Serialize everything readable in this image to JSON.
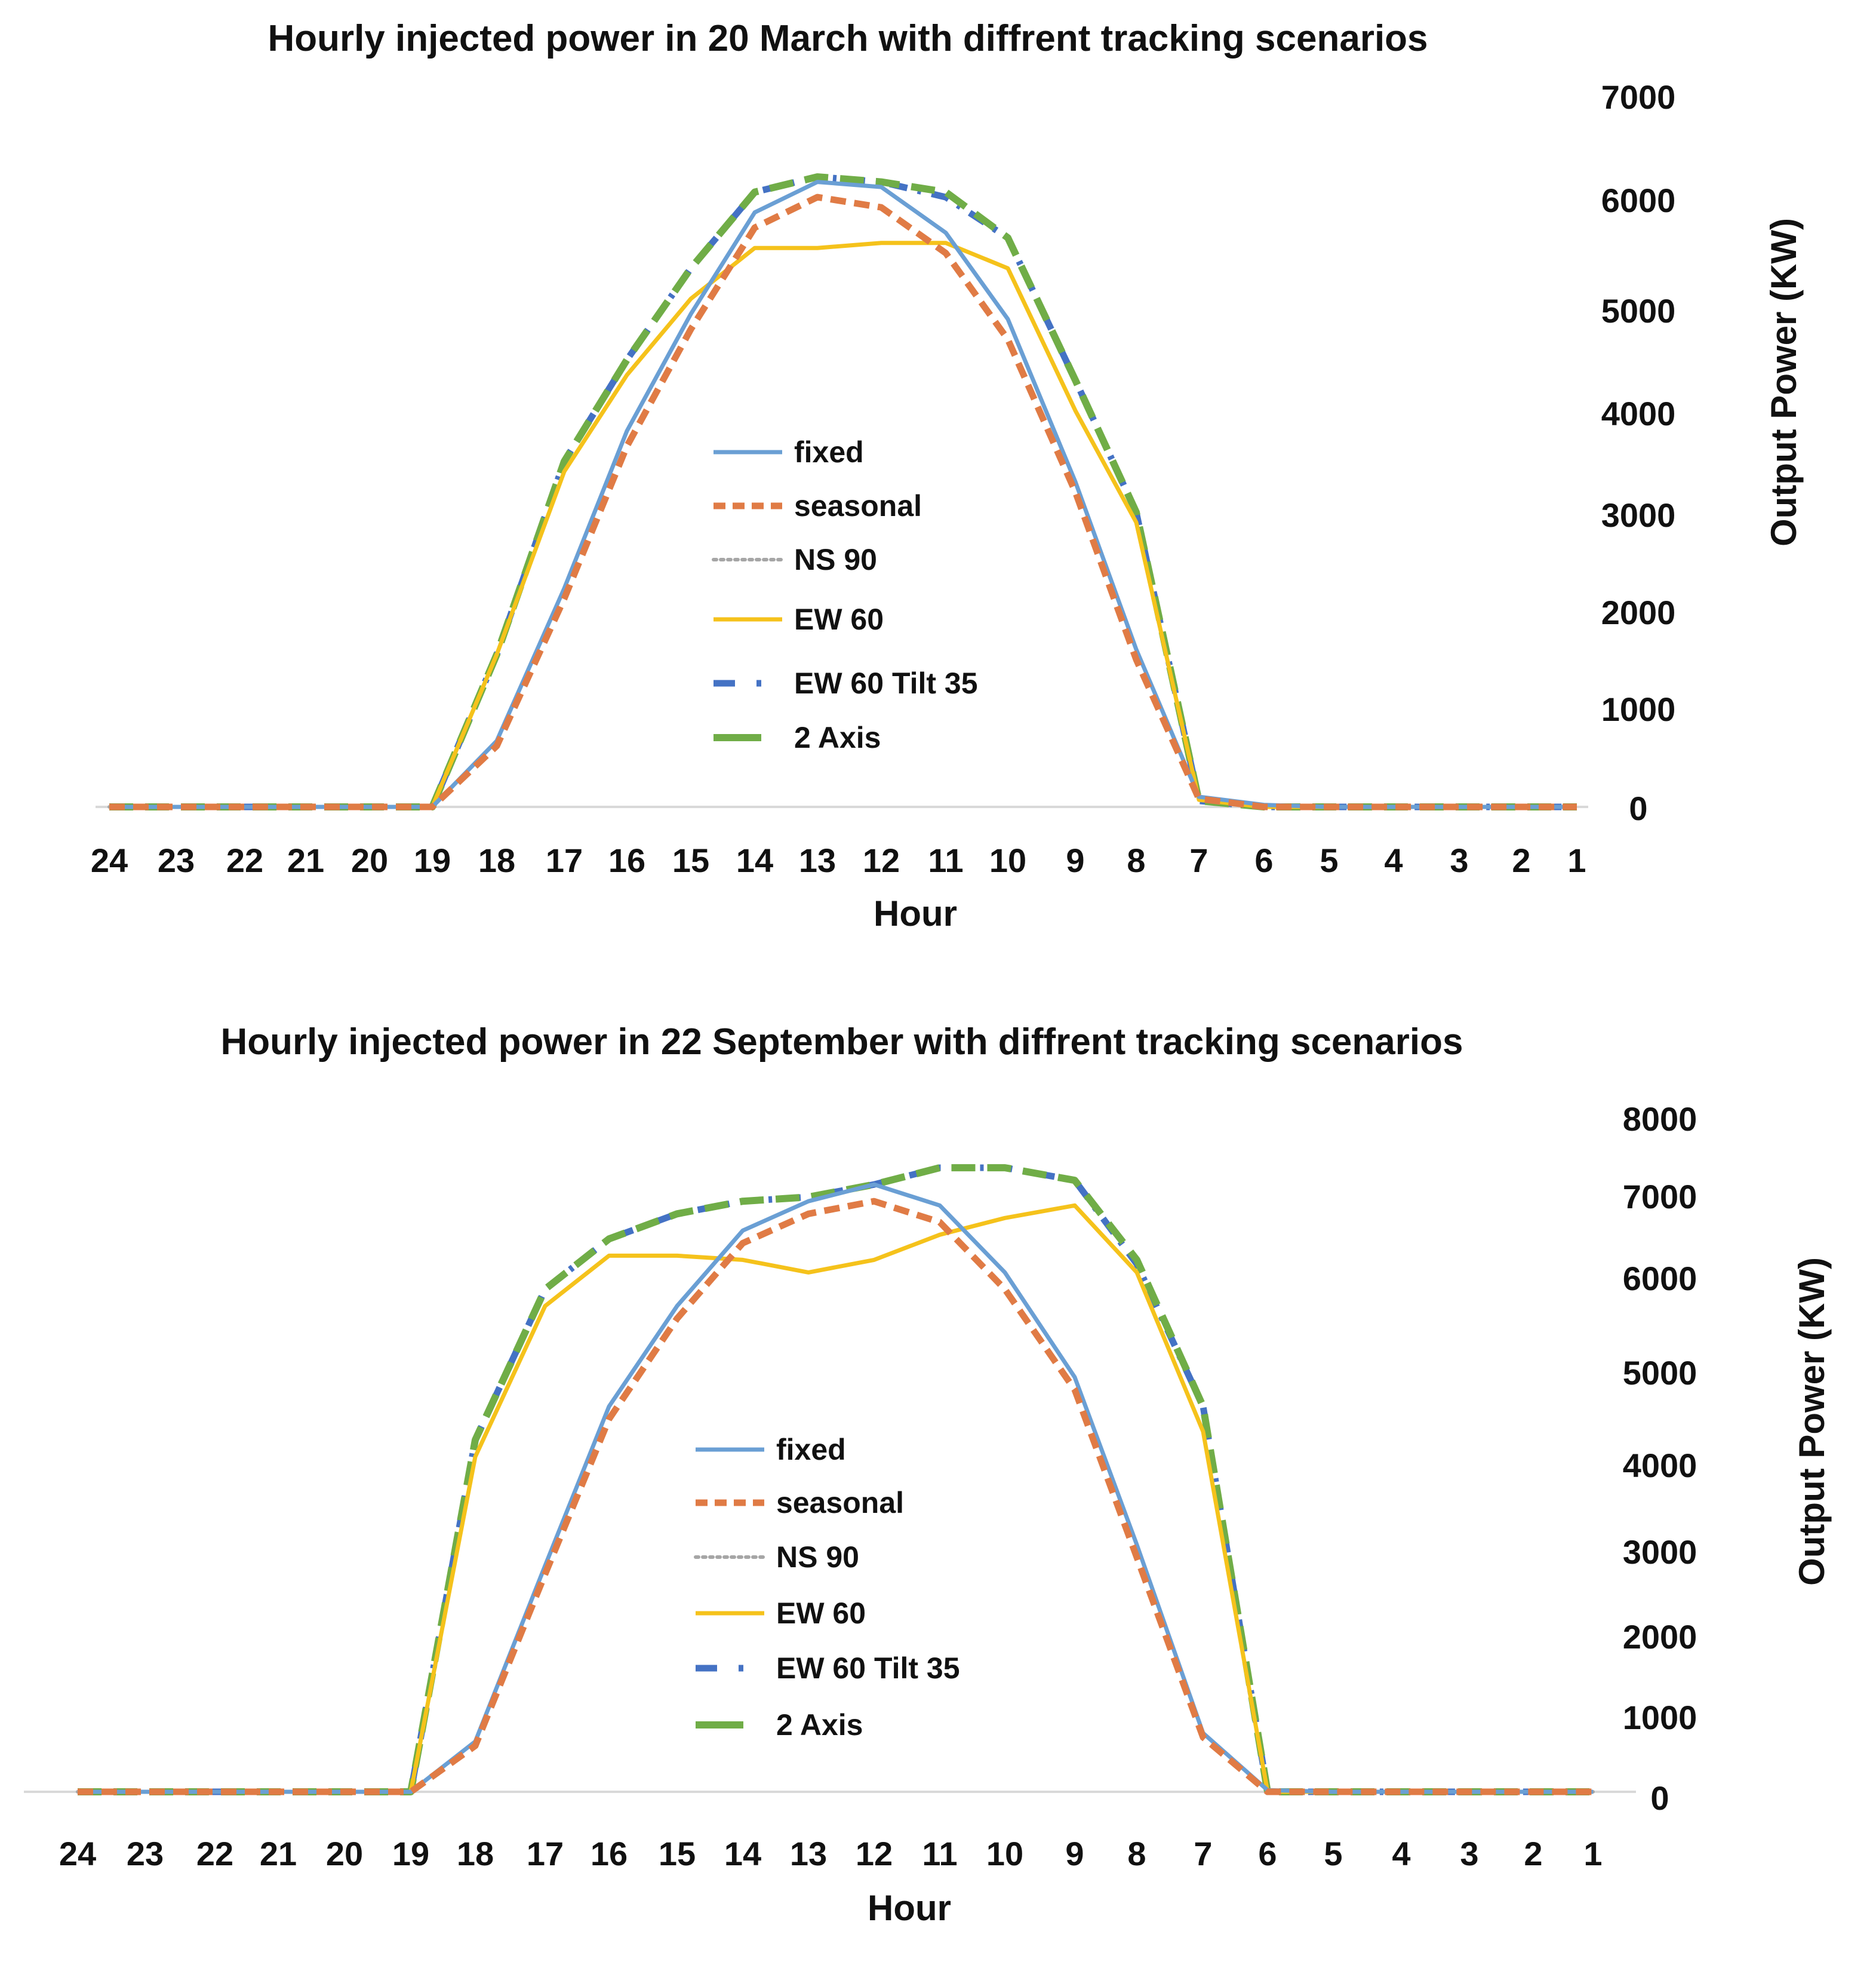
{
  "colors": {
    "fixed": "#6a9fd4",
    "seasonal": "#e07b45",
    "ns90": "#a6a6a6",
    "ew60": "#f5c21b",
    "ew60tilt35": "#4472c4",
    "axis2": "#70ad47",
    "baseline": "#d9d9d9"
  },
  "chart_data": [
    {
      "type": "line",
      "title": "Hourly injected power in 20 March with diffrent tracking scenarios",
      "xlabel": "Hour",
      "ylabel": "Output Power (KW)",
      "categories": [
        "24",
        "23",
        "22",
        "21",
        "20",
        "19",
        "18",
        "17",
        "16",
        "15",
        "14",
        "13",
        "12",
        "11",
        "10",
        "9",
        "8",
        "7",
        "6",
        "5",
        "4",
        "3",
        "2",
        "1"
      ],
      "y_ticks": [
        "0",
        "1000",
        "2000",
        "3000",
        "4000",
        "5000",
        "6000",
        "7000"
      ],
      "ylim": [
        0,
        7000
      ],
      "legend_title_keys": [
        "fixed",
        "seasonal",
        "ns90",
        "ew60",
        "ew60tilt35",
        "axis2"
      ],
      "series": [
        {
          "key": "fixed",
          "name": "fixed",
          "values": [
            0,
            0,
            0,
            0,
            0,
            0,
            650,
            2150,
            3700,
            4850,
            5850,
            6150,
            6100,
            5650,
            4800,
            3200,
            1550,
            100,
            20,
            0,
            0,
            0,
            0,
            0
          ]
        },
        {
          "key": "seasonal",
          "name": "seasonal",
          "values": [
            0,
            0,
            0,
            0,
            0,
            0,
            600,
            2050,
            3550,
            4700,
            5700,
            6000,
            5900,
            5450,
            4600,
            3100,
            1450,
            80,
            0,
            0,
            0,
            0,
            0,
            0
          ]
        },
        {
          "key": "ns90",
          "name": "NS 90",
          "values": [
            0,
            0,
            0,
            0,
            0,
            0,
            1500,
            3300,
            4250,
            5000,
            5500,
            5500,
            5550,
            5550,
            5300,
            3900,
            2800,
            70,
            0,
            0,
            0,
            0,
            0,
            0
          ]
        },
        {
          "key": "ew60",
          "name": "EW 60",
          "values": [
            0,
            0,
            0,
            0,
            0,
            0,
            1500,
            3300,
            4250,
            5000,
            5500,
            5500,
            5550,
            5550,
            5300,
            3900,
            2800,
            70,
            0,
            0,
            0,
            0,
            0,
            0
          ]
        },
        {
          "key": "ew60tilt35",
          "name": "EW 60 Tilt 35",
          "values": [
            0,
            0,
            0,
            0,
            0,
            0,
            1500,
            3400,
            4400,
            5300,
            6050,
            6200,
            6150,
            6000,
            5600,
            4200,
            2900,
            60,
            0,
            0,
            0,
            0,
            0,
            0
          ]
        },
        {
          "key": "axis2",
          "name": "2 Axis",
          "values": [
            0,
            0,
            0,
            0,
            0,
            0,
            1500,
            3400,
            4400,
            5300,
            6050,
            6200,
            6150,
            6050,
            5600,
            4200,
            2900,
            60,
            0,
            0,
            0,
            0,
            0,
            0
          ]
        }
      ]
    },
    {
      "type": "line",
      "title": "Hourly injected power in 22 September with diffrent tracking scenarios",
      "xlabel": "Hour",
      "ylabel": "Output Power (KW)",
      "categories": [
        "24",
        "23",
        "22",
        "21",
        "20",
        "19",
        "18",
        "17",
        "16",
        "15",
        "14",
        "13",
        "12",
        "11",
        "10",
        "9",
        "8",
        "7",
        "6",
        "5",
        "4",
        "3",
        "2",
        "1"
      ],
      "y_ticks": [
        "0",
        "1000",
        "2000",
        "3000",
        "4000",
        "5000",
        "6000",
        "7000",
        "8000"
      ],
      "ylim": [
        0,
        8000
      ],
      "series": [
        {
          "key": "fixed",
          "name": "fixed",
          "values": [
            0,
            0,
            0,
            0,
            0,
            0,
            600,
            2700,
            4600,
            5800,
            6700,
            7050,
            7250,
            7000,
            6200,
            4950,
            2950,
            700,
            20,
            0,
            0,
            0,
            0,
            0
          ]
        },
        {
          "key": "seasonal",
          "name": "seasonal",
          "values": [
            0,
            0,
            0,
            0,
            0,
            0,
            550,
            2600,
            4450,
            5650,
            6550,
            6900,
            7050,
            6800,
            6000,
            4800,
            2800,
            650,
            0,
            0,
            0,
            0,
            0,
            0
          ]
        },
        {
          "key": "ns90",
          "name": "NS 90",
          "values": [
            0,
            0,
            0,
            0,
            0,
            0,
            4000,
            5800,
            6400,
            6400,
            6350,
            6200,
            6350,
            6650,
            6850,
            7000,
            6200,
            4300,
            0,
            0,
            0,
            0,
            0,
            0
          ]
        },
        {
          "key": "ew60",
          "name": "EW 60",
          "values": [
            0,
            0,
            0,
            0,
            0,
            0,
            4000,
            5800,
            6400,
            6400,
            6350,
            6200,
            6350,
            6650,
            6850,
            7000,
            6200,
            4300,
            0,
            0,
            0,
            0,
            0,
            0
          ]
        },
        {
          "key": "ew60tilt35",
          "name": "EW 60 Tilt 35",
          "values": [
            0,
            0,
            0,
            0,
            0,
            0,
            4200,
            6000,
            6600,
            6900,
            7050,
            7100,
            7250,
            7450,
            7450,
            7300,
            6300,
            4600,
            0,
            0,
            0,
            0,
            0,
            0
          ]
        },
        {
          "key": "axis2",
          "name": "2 Axis",
          "values": [
            0,
            0,
            0,
            0,
            0,
            0,
            4200,
            6000,
            6600,
            6900,
            7050,
            7100,
            7250,
            7450,
            7450,
            7300,
            6350,
            4600,
            0,
            0,
            0,
            0,
            0,
            0
          ]
        }
      ]
    }
  ]
}
